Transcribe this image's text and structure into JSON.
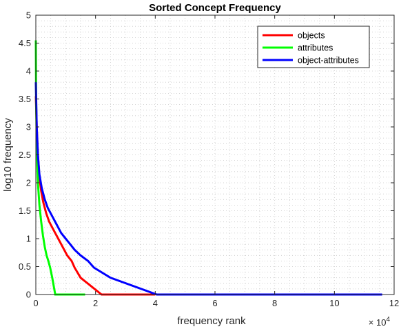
{
  "chart_data": {
    "type": "line",
    "title": "Sorted Concept Frequency",
    "xlabel": "frequency rank",
    "ylabel": "log10 frequency",
    "x_multiplier_label": "× 10",
    "x_multiplier_exponent": "4",
    "xlim": [
      0,
      120000
    ],
    "ylim": [
      0,
      5
    ],
    "x_ticks": [
      0,
      20000,
      40000,
      60000,
      80000,
      100000,
      120000
    ],
    "x_tick_labels": [
      "0",
      "2",
      "4",
      "6",
      "8",
      "10",
      "12"
    ],
    "y_ticks": [
      0,
      0.5,
      1,
      1.5,
      2,
      2.5,
      3,
      3.5,
      4,
      4.5,
      5
    ],
    "y_tick_labels": [
      "0",
      "0.5",
      "1",
      "1.5",
      "2",
      "2.5",
      "3",
      "3.5",
      "4",
      "4.5",
      "5"
    ],
    "grid": true,
    "legend_position": "top-right",
    "series": [
      {
        "name": "objects",
        "color": "#ff0000",
        "points": [
          [
            0,
            3.55
          ],
          [
            300,
            3.0
          ],
          [
            700,
            2.5
          ],
          [
            1200,
            2.1
          ],
          [
            1800,
            1.85
          ],
          [
            2500,
            1.65
          ],
          [
            3500,
            1.45
          ],
          [
            4500,
            1.3
          ],
          [
            5500,
            1.2
          ],
          [
            6500,
            1.1
          ],
          [
            7500,
            1.0
          ],
          [
            8500,
            0.9
          ],
          [
            9500,
            0.8
          ],
          [
            10500,
            0.7
          ],
          [
            12000,
            0.6
          ],
          [
            13000,
            0.48
          ],
          [
            15000,
            0.3
          ],
          [
            22000,
            0.0
          ],
          [
            40000,
            0.0
          ]
        ]
      },
      {
        "name": "attributes",
        "color": "#00ff00",
        "points": [
          [
            0,
            4.55
          ],
          [
            100,
            3.5
          ],
          [
            300,
            2.7
          ],
          [
            700,
            2.0
          ],
          [
            1200,
            1.6
          ],
          [
            1800,
            1.3
          ],
          [
            2400,
            1.05
          ],
          [
            3000,
            0.85
          ],
          [
            3600,
            0.7
          ],
          [
            4200,
            0.6
          ],
          [
            4800,
            0.48
          ],
          [
            5500,
            0.3
          ],
          [
            6500,
            0.0
          ],
          [
            16500,
            0.0
          ]
        ]
      },
      {
        "name": "object-attributes",
        "color": "#0000ff",
        "points": [
          [
            0,
            3.8
          ],
          [
            300,
            3.0
          ],
          [
            700,
            2.5
          ],
          [
            1200,
            2.15
          ],
          [
            2000,
            1.9
          ],
          [
            3000,
            1.7
          ],
          [
            4000,
            1.55
          ],
          [
            5500,
            1.4
          ],
          [
            7000,
            1.25
          ],
          [
            8500,
            1.1
          ],
          [
            10000,
            1.0
          ],
          [
            11500,
            0.9
          ],
          [
            13000,
            0.8
          ],
          [
            15000,
            0.7
          ],
          [
            17500,
            0.6
          ],
          [
            19500,
            0.48
          ],
          [
            25000,
            0.3
          ],
          [
            40500,
            0.0
          ],
          [
            116000,
            0.0
          ]
        ]
      }
    ]
  }
}
